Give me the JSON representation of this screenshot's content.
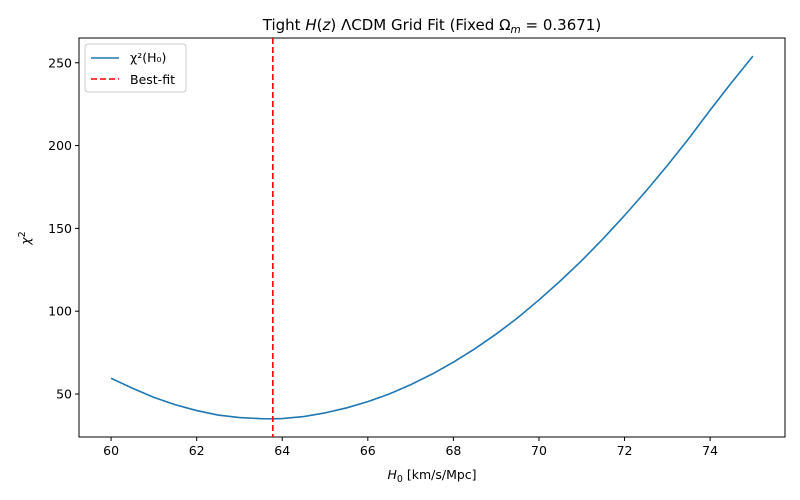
{
  "chart_data": {
    "type": "line",
    "title": "Tight H(z) ΛCDM Grid Fit (Fixed Ω_m = 0.3671)",
    "title_parts": {
      "prefix": "Tight ",
      "func_h": "H",
      "func_paren_open": "(",
      "func_z": "z",
      "func_paren_close": ")",
      "middle": " ΛCDM Grid Fit (Fixed ",
      "omega": "Ω",
      "omega_sub": "m",
      "suffix": " = 0.3671)"
    },
    "xlabel": "H0 [km/s/Mpc]",
    "xlabel_parts": {
      "sym": "H",
      "sub": "0",
      "rest": " [km/s/Mpc]"
    },
    "ylabel": "χ2",
    "ylabel_parts": {
      "sym": "χ",
      "sup": "2"
    },
    "xlim": [
      59.25,
      75.75
    ],
    "ylim": [
      24.05,
      264.95
    ],
    "xticks": [
      60,
      62,
      64,
      66,
      68,
      70,
      72,
      74
    ],
    "yticks": [
      50,
      100,
      150,
      200,
      250
    ],
    "grid": false,
    "legend_position": "upper-left",
    "series": [
      {
        "name": "χ²(H₀)",
        "color": "#1f77b4",
        "style": "solid",
        "x": [
          60,
          60.5,
          61,
          61.5,
          62,
          62.5,
          63,
          63.5,
          63.8,
          64,
          64.5,
          65,
          65.5,
          66,
          66.5,
          67,
          67.5,
          68,
          68.5,
          69,
          69.5,
          70,
          70.5,
          71,
          71.5,
          72,
          72.5,
          73,
          73.5,
          74,
          74.5,
          75
        ],
        "y": [
          59.5,
          53.5,
          48.0,
          43.5,
          40.0,
          37.3,
          35.8,
          35.1,
          35.0,
          35.2,
          36.4,
          38.6,
          41.6,
          45.4,
          50.0,
          55.6,
          62.0,
          69.2,
          77.3,
          86.2,
          96.0,
          106.8,
          118.3,
          130.6,
          143.8,
          157.8,
          172.5,
          188.0,
          204.2,
          221.4,
          238.0,
          254.0
        ]
      }
    ],
    "vlines": [
      {
        "name": "Best-fit",
        "x": 63.78,
        "color": "#ff0000",
        "style": "dashed"
      }
    ]
  }
}
